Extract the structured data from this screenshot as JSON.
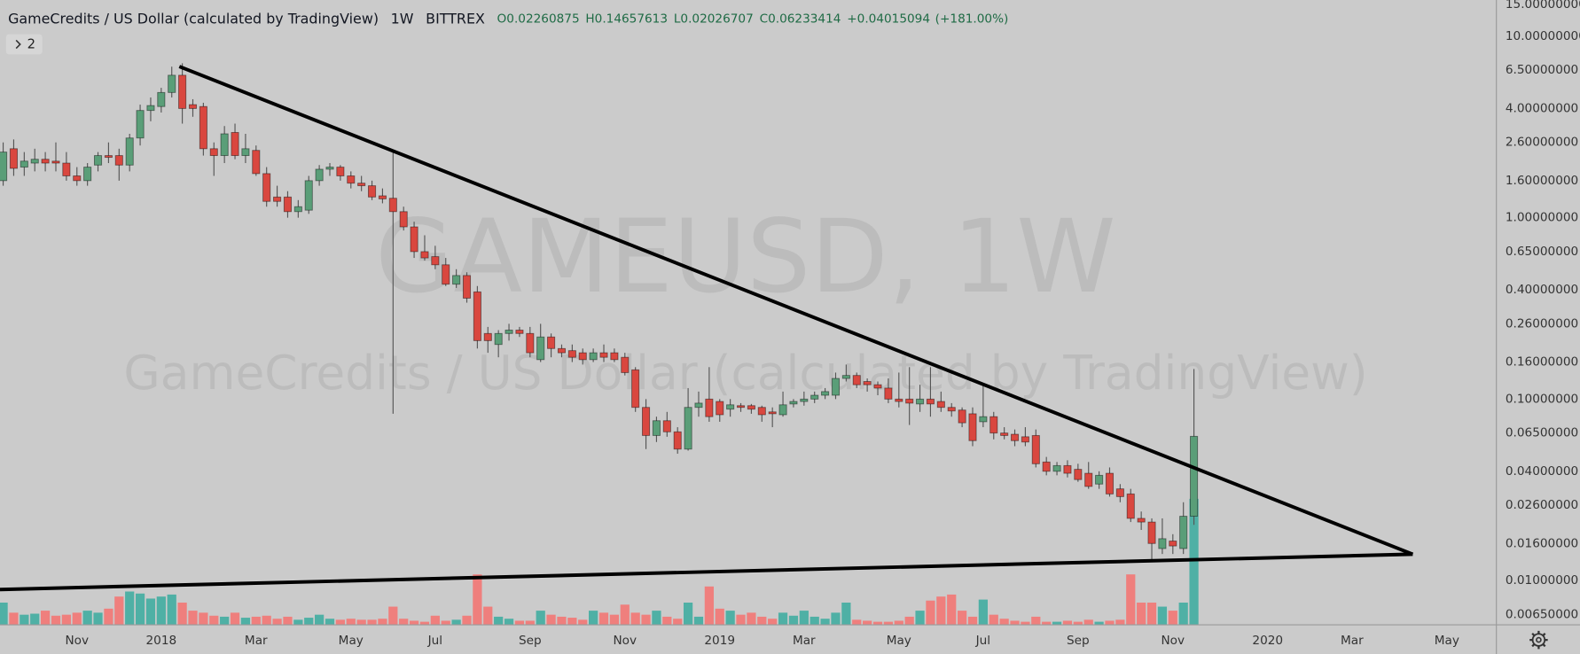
{
  "chart_data": {
    "type": "candlestick",
    "title": "GameCredits / US Dollar (calculated by TradingView)",
    "interval": "1W",
    "exchange": "BITTREX",
    "watermark": "GAMEUSD, 1W",
    "ohlc_labels": [
      "O",
      "H",
      "L",
      "C"
    ],
    "change": "+0.04015094",
    "change_pct": "(+181.00%)",
    "indicator_count": "2",
    "log_scale": true,
    "grid": false,
    "up_color": "#5a9e78",
    "down_color": "#d9473f",
    "volume_up_color": "#4fb0a5",
    "volume_down_color": "#ef7f7d",
    "ylim": [
      0.0057,
      15.85
    ],
    "yticks": [
      {
        "value": 15,
        "label": "15.00000000"
      },
      {
        "value": 10,
        "label": "10.00000000"
      },
      {
        "value": 6.5,
        "label": "6.50000000"
      },
      {
        "value": 4,
        "label": "4.00000000"
      },
      {
        "value": 2.6,
        "label": "2.60000000"
      },
      {
        "value": 1.6,
        "label": "1.60000000"
      },
      {
        "value": 1,
        "label": "1.00000000"
      },
      {
        "value": 0.65,
        "label": "0.65000000"
      },
      {
        "value": 0.4,
        "label": "0.40000000"
      },
      {
        "value": 0.26,
        "label": "0.26000000"
      },
      {
        "value": 0.16,
        "label": "0.16000000"
      },
      {
        "value": 0.1,
        "label": "0.10000000"
      },
      {
        "value": 0.065,
        "label": "0.06500000"
      },
      {
        "value": 0.04,
        "label": "0.04000000"
      },
      {
        "value": 0.026,
        "label": "0.02600000"
      },
      {
        "value": 0.016,
        "label": "0.01600000"
      },
      {
        "value": 0.01,
        "label": "0.01000000"
      },
      {
        "value": 0.0065,
        "label": "0.00650000"
      }
    ],
    "categories": [
      null,
      null,
      null,
      null,
      null,
      null,
      null,
      "Nov",
      null,
      null,
      null,
      null,
      null,
      null,
      null,
      "2018",
      null,
      null,
      null,
      null,
      null,
      null,
      null,
      null,
      "Mar",
      null,
      null,
      null,
      null,
      null,
      null,
      null,
      null,
      "May",
      null,
      null,
      null,
      null,
      null,
      null,
      null,
      "Jul",
      null,
      null,
      null,
      null,
      null,
      null,
      null,
      null,
      "Sep",
      null,
      null,
      null,
      null,
      null,
      null,
      null,
      null,
      "Nov",
      null,
      null,
      null,
      null,
      null,
      null,
      null,
      null,
      "2019",
      null,
      null,
      null,
      null,
      null,
      null,
      null,
      "Mar",
      null,
      null,
      null,
      null,
      null,
      null,
      null,
      null,
      "May",
      null,
      null,
      null,
      null,
      null,
      null,
      null,
      "Jul",
      null,
      null,
      null,
      null,
      null,
      null,
      null,
      null,
      "Sep",
      null,
      null,
      null,
      null,
      null,
      null,
      null,
      null,
      "Nov",
      null,
      null,
      null,
      null,
      null,
      null,
      null,
      null,
      "2020",
      null,
      null,
      null,
      null,
      null,
      null,
      null,
      "Mar",
      null,
      null,
      null,
      null,
      null,
      null,
      null,
      null,
      "May",
      null,
      null,
      null,
      null
    ],
    "open": [
      1.6,
      2.4,
      1.9,
      2.0,
      2.1,
      2.05,
      2.0,
      1.7,
      1.6,
      1.95,
      2.2,
      2.2,
      1.95,
      2.75,
      3.9,
      4.1,
      4.9,
      6.1,
      4.2,
      4.1,
      2.4,
      2.2,
      2.95,
      2.2,
      2.35,
      1.75,
      1.3,
      1.3,
      1.08,
      1.1,
      1.6,
      1.85,
      1.9,
      1.7,
      1.55,
      1.5,
      1.32,
      1.28,
      1.08,
      0.89,
      0.65,
      0.61,
      0.55,
      0.43,
      0.48,
      0.39,
      0.23,
      0.2,
      0.23,
      0.24,
      0.23,
      0.165,
      0.22,
      0.19,
      0.185,
      0.18,
      0.165,
      0.18,
      0.18,
      0.17,
      0.145,
      0.09,
      0.063,
      0.076,
      0.066,
      0.053,
      0.09,
      0.1,
      0.097,
      0.088,
      0.092,
      0.092,
      0.09,
      0.085,
      0.082,
      0.094,
      0.097,
      0.1,
      0.105,
      0.105,
      0.13,
      0.135,
      0.125,
      0.12,
      0.115,
      0.1,
      0.1,
      0.094,
      0.1,
      0.097,
      0.09,
      0.087,
      0.083,
      0.075,
      0.08,
      0.065,
      0.064,
      0.062,
      0.063,
      0.045,
      0.04,
      0.043,
      0.041,
      0.039,
      0.034,
      0.039,
      0.032,
      0.03,
      0.022,
      0.021,
      0.015,
      0.0165,
      0.015,
      0.02260875,
      null,
      null,
      null,
      null,
      null,
      null,
      null,
      null,
      null,
      null,
      null,
      null,
      null,
      null,
      null,
      null,
      null,
      null,
      null,
      null,
      null,
      null,
      null,
      null,
      null,
      null,
      null,
      null
    ],
    "high": [
      2.6,
      2.7,
      2.3,
      2.4,
      2.3,
      2.6,
      2.3,
      1.9,
      2.0,
      2.3,
      2.6,
      2.4,
      2.9,
      4.2,
      4.6,
      5.2,
      6.8,
      7.1,
      4.5,
      4.3,
      2.6,
      3.2,
      3.3,
      2.9,
      2.5,
      1.9,
      1.5,
      1.4,
      1.25,
      1.7,
      1.95,
      2.0,
      1.95,
      1.8,
      1.7,
      1.6,
      1.45,
      2.3,
      1.15,
      0.95,
      0.8,
      0.7,
      0.6,
      0.52,
      0.5,
      0.42,
      0.25,
      0.24,
      0.26,
      0.25,
      0.25,
      0.26,
      0.23,
      0.2,
      0.2,
      0.19,
      0.19,
      0.2,
      0.19,
      0.18,
      0.15,
      0.1,
      0.08,
      0.085,
      0.07,
      0.115,
      0.11,
      0.15,
      0.1,
      0.1,
      0.095,
      0.094,
      0.092,
      0.09,
      0.11,
      0.1,
      0.11,
      0.11,
      0.115,
      0.14,
      0.155,
      0.14,
      0.13,
      0.125,
      0.13,
      0.14,
      0.15,
      0.12,
      0.15,
      0.11,
      0.095,
      0.09,
      0.09,
      0.12,
      0.085,
      0.07,
      0.068,
      0.07,
      0.068,
      0.048,
      0.045,
      0.046,
      0.044,
      0.045,
      0.04,
      0.042,
      0.034,
      0.032,
      0.024,
      0.022,
      0.022,
      0.018,
      0.027,
      0.14657613,
      null,
      null,
      null,
      null,
      null,
      null,
      null,
      null,
      null,
      null,
      null,
      null,
      null,
      null,
      null,
      null,
      null,
      null,
      null,
      null,
      null,
      null,
      null,
      null,
      null,
      null,
      null,
      null
    ],
    "low": [
      1.5,
      1.7,
      1.7,
      1.8,
      1.8,
      1.8,
      1.6,
      1.5,
      1.5,
      1.8,
      2.0,
      1.6,
      1.8,
      2.5,
      3.4,
      3.8,
      4.6,
      3.3,
      3.6,
      2.2,
      1.7,
      2.0,
      2.1,
      2.0,
      1.7,
      1.15,
      1.15,
      1.0,
      1.0,
      1.05,
      1.5,
      1.7,
      1.6,
      1.45,
      1.4,
      1.25,
      1.2,
      0.083,
      0.85,
      0.6,
      0.58,
      0.52,
      0.42,
      0.41,
      0.34,
      0.19,
      0.18,
      0.17,
      0.21,
      0.22,
      0.17,
      0.16,
      0.17,
      0.17,
      0.16,
      0.155,
      0.16,
      0.16,
      0.16,
      0.135,
      0.085,
      0.053,
      0.058,
      0.062,
      0.05,
      0.052,
      0.08,
      0.075,
      0.075,
      0.08,
      0.085,
      0.083,
      0.075,
      0.07,
      0.08,
      0.09,
      0.092,
      0.095,
      0.1,
      0.1,
      0.125,
      0.115,
      0.11,
      0.105,
      0.095,
      0.09,
      0.072,
      0.085,
      0.08,
      0.085,
      0.08,
      0.07,
      0.055,
      0.07,
      0.06,
      0.06,
      0.055,
      0.055,
      0.042,
      0.038,
      0.038,
      0.037,
      0.035,
      0.032,
      0.032,
      0.029,
      0.027,
      0.021,
      0.019,
      0.013,
      0.014,
      0.014,
      0.014,
      0.02026707,
      null,
      null,
      null,
      null,
      null,
      null,
      null,
      null,
      null,
      null,
      null,
      null,
      null,
      null,
      null,
      null,
      null,
      null,
      null,
      null,
      null,
      null,
      null,
      null,
      null,
      null,
      null,
      null
    ],
    "close": [
      2.3,
      1.87,
      2.05,
      2.1,
      2.0,
      2.0,
      1.7,
      1.6,
      1.9,
      2.2,
      2.15,
      1.95,
      2.75,
      3.9,
      4.15,
      4.9,
      6.1,
      4.0,
      4.0,
      2.4,
      2.2,
      2.9,
      2.2,
      2.4,
      1.75,
      1.23,
      1.23,
      1.08,
      1.15,
      1.6,
      1.85,
      1.9,
      1.7,
      1.55,
      1.5,
      1.3,
      1.27,
      1.08,
      0.89,
      0.65,
      0.6,
      0.55,
      0.43,
      0.48,
      0.36,
      0.21,
      0.21,
      0.23,
      0.24,
      0.23,
      0.18,
      0.22,
      0.19,
      0.18,
      0.17,
      0.165,
      0.18,
      0.17,
      0.165,
      0.14,
      0.09,
      0.063,
      0.076,
      0.066,
      0.053,
      0.09,
      0.095,
      0.08,
      0.082,
      0.093,
      0.09,
      0.088,
      0.082,
      0.083,
      0.093,
      0.097,
      0.1,
      0.105,
      0.11,
      0.13,
      0.135,
      0.12,
      0.12,
      0.115,
      0.1,
      0.097,
      0.095,
      0.1,
      0.094,
      0.09,
      0.086,
      0.074,
      0.059,
      0.08,
      0.065,
      0.063,
      0.059,
      0.058,
      0.044,
      0.04,
      0.043,
      0.039,
      0.036,
      0.033,
      0.038,
      0.03,
      0.029,
      0.022,
      0.021,
      0.016,
      0.017,
      0.0155,
      0.0226,
      0.06233414,
      null,
      null,
      null,
      null,
      null,
      null,
      null,
      null,
      null,
      null,
      null,
      null,
      null,
      null,
      null,
      null,
      null,
      null,
      null,
      null,
      null,
      null,
      null,
      null,
      null,
      null,
      null,
      null
    ],
    "volume": [
      22,
      12,
      10,
      11,
      14,
      9,
      10,
      12,
      14,
      12,
      16,
      28,
      33,
      31,
      26,
      28,
      30,
      22,
      14,
      12,
      9,
      8,
      12,
      7,
      8,
      9,
      6,
      8,
      5,
      7,
      10,
      6,
      5,
      6,
      5,
      5,
      6,
      18,
      6,
      4,
      3,
      9,
      4,
      5,
      9,
      50,
      18,
      8,
      6,
      4,
      4,
      14,
      10,
      8,
      7,
      5,
      14,
      12,
      10,
      20,
      12,
      10,
      14,
      8,
      6,
      22,
      8,
      38,
      16,
      14,
      10,
      12,
      8,
      6,
      12,
      9,
      14,
      8,
      6,
      12,
      22,
      5,
      4,
      3,
      3,
      4,
      8,
      14,
      24,
      28,
      30,
      14,
      8,
      25,
      10,
      6,
      4,
      3,
      8,
      3,
      3,
      4,
      3,
      5,
      3,
      4,
      5,
      50,
      22,
      22,
      18,
      14,
      22,
      125,
      null,
      null,
      null,
      null,
      null,
      null,
      null,
      null,
      null,
      null,
      null,
      null,
      null,
      null,
      null,
      null,
      null,
      null,
      null,
      null,
      null,
      null,
      null,
      null,
      null,
      null,
      null,
      null
    ]
  }
}
